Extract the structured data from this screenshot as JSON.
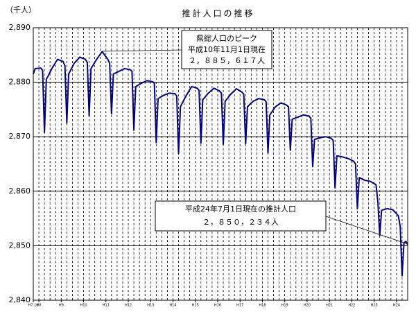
{
  "chart_data": {
    "type": "line",
    "title": "推計人口の推移",
    "y_unit": "（千人）",
    "x": [
      1995.75,
      1995.833,
      1996.083,
      1996.167,
      1996.25,
      1996.333,
      1996.583,
      1996.833,
      1997.083,
      1997.167,
      1997.25,
      1997.333,
      1997.583,
      1997.833,
      1998.083,
      1998.167,
      1998.25,
      1998.333,
      1998.583,
      1998.833,
      1999.083,
      1999.167,
      1999.25,
      1999.333,
      1999.583,
      1999.833,
      2000.083,
      2000.167,
      2000.25,
      2000.333,
      2000.583,
      2000.833,
      2001.083,
      2001.167,
      2001.25,
      2001.333,
      2001.583,
      2001.833,
      2002.083,
      2002.167,
      2002.25,
      2002.333,
      2002.583,
      2002.833,
      2003.083,
      2003.167,
      2003.25,
      2003.333,
      2003.583,
      2003.833,
      2004.083,
      2004.167,
      2004.25,
      2004.333,
      2004.583,
      2004.833,
      2005.083,
      2005.167,
      2005.25,
      2005.333,
      2005.583,
      2005.833,
      2006.083,
      2006.167,
      2006.25,
      2006.333,
      2006.583,
      2006.833,
      2007.083,
      2007.167,
      2007.25,
      2007.333,
      2007.583,
      2007.833,
      2008.083,
      2008.167,
      2008.25,
      2008.333,
      2008.583,
      2008.833,
      2009.083,
      2009.167,
      2009.25,
      2009.333,
      2009.583,
      2009.833,
      2010.083,
      2010.167,
      2010.25,
      2010.333,
      2010.583,
      2010.833,
      2011.083,
      2011.167,
      2011.25,
      2011.333,
      2011.583,
      2011.833,
      2012.083,
      2012.167,
      2012.25,
      2012.333,
      2012.417,
      2012.5
    ],
    "series": [
      {
        "name": "推計人口",
        "color": "#000080",
        "values": [
          2881.5,
          2882.5,
          2882.6,
          2882.2,
          2870.8,
          2880.5,
          2882.5,
          2884.2,
          2883.8,
          2883,
          2872.5,
          2881.5,
          2883.5,
          2884.6,
          2884.2,
          2883.6,
          2873.8,
          2882.5,
          2884.2,
          2885.617,
          2884.2,
          2883.5,
          2874.2,
          2881.5,
          2882,
          2882.5,
          2882.3,
          2882,
          2871.2,
          2879.2,
          2879.8,
          2880.3,
          2880.1,
          2879.8,
          2868.9,
          2877,
          2877.6,
          2878,
          2877.9,
          2877.5,
          2866.9,
          2875.5,
          2877.5,
          2879.2,
          2878.9,
          2878.5,
          2868.8,
          2876.8,
          2878,
          2878.9,
          2878.4,
          2878,
          2868.6,
          2876.5,
          2877.8,
          2878.8,
          2878.2,
          2877.8,
          2868.7,
          2875.5,
          2876.5,
          2877,
          2876.8,
          2876.4,
          2867,
          2874,
          2875.5,
          2876.2,
          2875.8,
          2875.5,
          2867.5,
          2873.2,
          2873.6,
          2874,
          2873.8,
          2873.4,
          2864.5,
          2869.5,
          2869.8,
          2870,
          2869.7,
          2869.3,
          2860.6,
          2866.5,
          2866.3,
          2866,
          2865.5,
          2865,
          2856.8,
          2862.5,
          2862,
          2861.8,
          2861.2,
          2858,
          2851.9,
          2856.5,
          2856.8,
          2856.6,
          2855.5,
          2853.5,
          2844.5,
          2850.5,
          2850.8,
          2850.234
        ]
      }
    ],
    "xlim": [
      1995.75,
      2012.5
    ],
    "xticks": [
      {
        "value": 1995.75,
        "label": "H7.10"
      },
      {
        "value": 1996,
        "label": "H8"
      },
      {
        "value": 1997,
        "label": "H9"
      },
      {
        "value": 1998,
        "label": "H10"
      },
      {
        "value": 1999,
        "label": "H11"
      },
      {
        "value": 2000,
        "label": "H12"
      },
      {
        "value": 2001,
        "label": "H13"
      },
      {
        "value": 2002,
        "label": "H14"
      },
      {
        "value": 2003,
        "label": "H15"
      },
      {
        "value": 2004,
        "label": "H16"
      },
      {
        "value": 2005,
        "label": "H17"
      },
      {
        "value": 2006,
        "label": "H18"
      },
      {
        "value": 2007,
        "label": "H19"
      },
      {
        "value": 2008,
        "label": "H20"
      },
      {
        "value": 2009,
        "label": "H21"
      },
      {
        "value": 2010,
        "label": "H22"
      },
      {
        "value": 2011,
        "label": "H23"
      },
      {
        "value": 2012,
        "label": "H24"
      }
    ],
    "xgrid": [
      1996,
      1996.25,
      1996.5,
      1996.75,
      1997,
      1997.25,
      1997.5,
      1997.75,
      1998,
      1998.25,
      1998.5,
      1998.75,
      1999,
      1999.25,
      1999.5,
      1999.75,
      2000,
      2000.25,
      2000.5,
      2000.75,
      2001,
      2001.25,
      2001.5,
      2001.75,
      2002,
      2002.25,
      2002.5,
      2002.75,
      2003,
      2003.25,
      2003.5,
      2003.75,
      2004,
      2004.25,
      2004.5,
      2004.75,
      2005,
      2005.25,
      2005.5,
      2005.75,
      2006,
      2006.25,
      2006.5,
      2006.75,
      2007,
      2007.25,
      2007.5,
      2007.75,
      2008,
      2008.25,
      2008.5,
      2008.75,
      2009,
      2009.25,
      2009.5,
      2009.75,
      2010,
      2010.25,
      2010.5,
      2010.75,
      2011,
      2011.25,
      2011.5,
      2011.75,
      2012,
      2012.25
    ],
    "ylim": [
      2840,
      2890
    ],
    "yticks": [
      {
        "value": 2840,
        "label": "2,840"
      },
      {
        "value": 2850,
        "label": "2,850"
      },
      {
        "value": 2860,
        "label": "2,860"
      },
      {
        "value": 2870,
        "label": "2,870"
      },
      {
        "value": 2880,
        "label": "2,880"
      },
      {
        "value": 2890,
        "label": "2,890"
      }
    ],
    "grid": true,
    "annotations": [
      {
        "lines": [
          "県総人口のピーク",
          "平成10年11月1日現在",
          "２，８８５，６１７人"
        ]
      },
      {
        "lines": [
          "平成24年7月1日現在の推計人口",
          "２，８５０，２３４人"
        ]
      }
    ]
  }
}
